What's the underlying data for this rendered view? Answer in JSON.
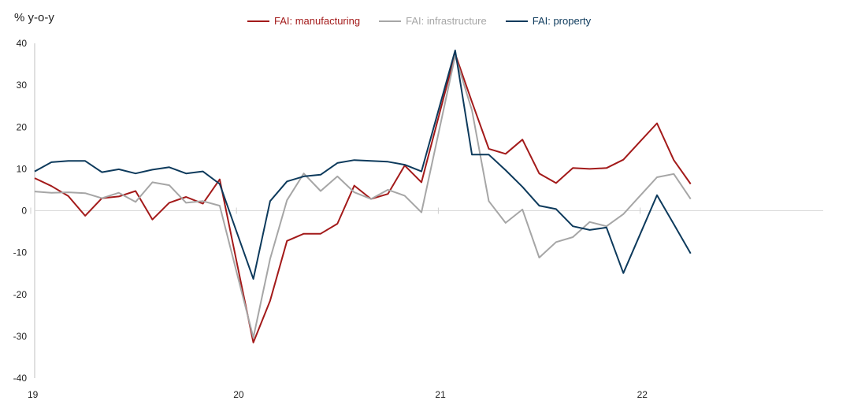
{
  "chart_data": {
    "type": "line",
    "ylabel": "% y-o-y",
    "ylim": [
      -40,
      40
    ],
    "yticks": [
      -40,
      -30,
      -20,
      -10,
      0,
      10,
      20,
      30,
      40
    ],
    "xticks": [
      "19",
      "20",
      "21",
      "22"
    ],
    "x_months": [
      "2019-01",
      "2019-02",
      "2019-03",
      "2019-04",
      "2019-05",
      "2019-06",
      "2019-07",
      "2019-08",
      "2019-09",
      "2019-10",
      "2019-11",
      "2019-12",
      "2020-01",
      "2020-02",
      "2020-03",
      "2020-04",
      "2020-05",
      "2020-06",
      "2020-07",
      "2020-08",
      "2020-09",
      "2020-10",
      "2020-11",
      "2020-12",
      "2021-01",
      "2021-02",
      "2021-03",
      "2021-04",
      "2021-05",
      "2021-06",
      "2021-07",
      "2021-08",
      "2021-09",
      "2021-10",
      "2021-11",
      "2021-12",
      "2022-01",
      "2022-02",
      "2022-03",
      "2022-04"
    ],
    "legend_position": "top-center",
    "grid": false,
    "series": [
      {
        "name": "FAI: manufacturing",
        "color": "#a31a1a",
        "values": [
          7.8,
          5.9,
          3.5,
          -1.2,
          3.0,
          3.4,
          4.7,
          -2.1,
          1.9,
          3.3,
          1.7,
          7.5,
          null,
          -31.5,
          -21.5,
          -7.2,
          -5.5,
          -5.5,
          -3.1,
          6.0,
          2.8,
          4.0,
          10.8,
          6.8,
          null,
          37.5,
          26.0,
          14.8,
          13.6,
          17.0,
          8.9,
          6.6,
          10.2,
          10.0,
          10.2,
          12.2,
          null,
          20.9,
          12.1,
          6.4
        ]
      },
      {
        "name": "FAI: infrastructure",
        "color": "#a6a6a6",
        "values": [
          4.6,
          4.3,
          4.4,
          4.2,
          3.0,
          4.3,
          2.1,
          6.8,
          6.1,
          1.9,
          2.3,
          1.2,
          null,
          -30.3,
          -11.5,
          2.5,
          8.9,
          4.7,
          8.2,
          4.4,
          2.8,
          5.0,
          3.6,
          -0.4,
          null,
          37.0,
          24.0,
          2.3,
          -2.9,
          0.3,
          -11.2,
          -7.5,
          -6.3,
          -2.7,
          -3.7,
          -0.8,
          null,
          8.0,
          8.8,
          2.8
        ]
      },
      {
        "name": "FAI: property",
        "color": "#0d3a5c",
        "values": [
          9.4,
          11.6,
          11.9,
          11.9,
          9.2,
          9.9,
          8.9,
          9.8,
          10.4,
          8.9,
          9.4,
          6.4,
          null,
          -16.3,
          2.3,
          7.0,
          8.2,
          8.6,
          11.4,
          12.1,
          11.9,
          11.7,
          11.0,
          9.4,
          null,
          38.3,
          13.4,
          13.4,
          9.7,
          5.7,
          1.2,
          0.4,
          -3.7,
          -4.6,
          -4.0,
          -14.9,
          null,
          3.7,
          -3.2,
          -10.2
        ]
      }
    ]
  }
}
